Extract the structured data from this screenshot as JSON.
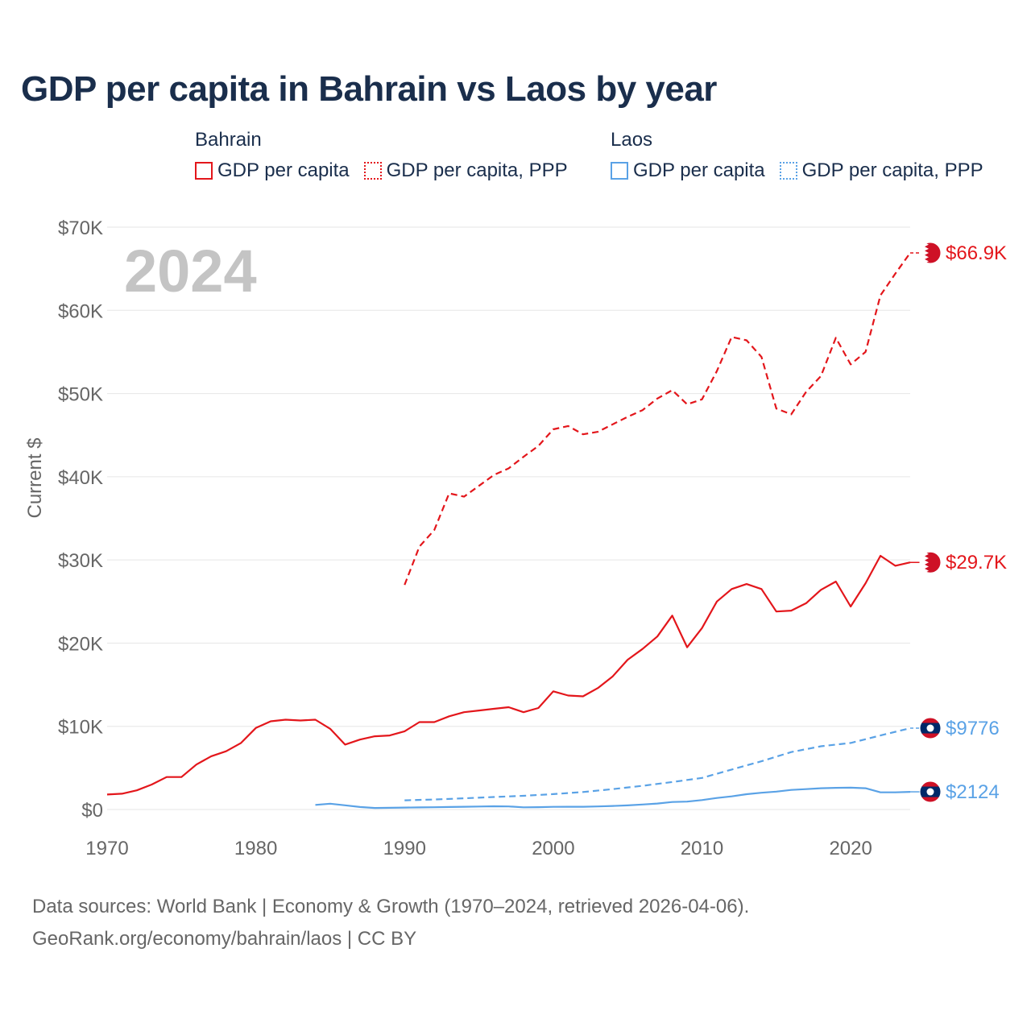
{
  "title": "GDP per capita in Bahrain vs Laos by year",
  "legend": {
    "groups": [
      {
        "country": "Bahrain",
        "items": [
          "GDP per capita",
          "GDP per capita, PPP"
        ]
      },
      {
        "country": "Laos",
        "items": [
          "GDP per capita",
          "GDP per capita, PPP"
        ]
      }
    ]
  },
  "colors": {
    "bahrain": "#e3161b",
    "laos": "#5aa2e6",
    "grid": "#e6e6e6",
    "axis_text": "#666666",
    "year_watermark": "#c4c4c4"
  },
  "chart_data": {
    "type": "line",
    "title": "GDP per capita in Bahrain vs Laos by year",
    "xlabel": "",
    "ylabel": "Current $",
    "xlim": [
      1970,
      2024
    ],
    "ylim": [
      0,
      70000
    ],
    "x_ticks": [
      "1970",
      "1980",
      "1990",
      "2000",
      "2010",
      "2020"
    ],
    "y_ticks": [
      "$0",
      "$10K",
      "$20K",
      "$30K",
      "$40K",
      "$50K",
      "$60K",
      "$70K"
    ],
    "year_label": "2024",
    "series": [
      {
        "name": "Bahrain GDP per capita",
        "country": "Bahrain",
        "style": "solid",
        "end_label": "$29.7K",
        "x": [
          1970,
          1971,
          1972,
          1973,
          1974,
          1975,
          1976,
          1977,
          1978,
          1979,
          1980,
          1981,
          1982,
          1983,
          1984,
          1985,
          1986,
          1987,
          1988,
          1989,
          1990,
          1991,
          1992,
          1993,
          1994,
          1995,
          1996,
          1997,
          1998,
          1999,
          2000,
          2001,
          2002,
          2003,
          2004,
          2005,
          2006,
          2007,
          2008,
          2009,
          2010,
          2011,
          2012,
          2013,
          2014,
          2015,
          2016,
          2017,
          2018,
          2019,
          2020,
          2021,
          2022,
          2023,
          2024
        ],
        "values": [
          1800,
          1900,
          2300,
          3000,
          3900,
          3900,
          5400,
          6400,
          7000,
          8000,
          9800,
          10600,
          10800,
          10700,
          10800,
          9700,
          7800,
          8400,
          8800,
          8900,
          9400,
          10500,
          10500,
          11200,
          11700,
          11900,
          12100,
          12300,
          11700,
          12200,
          14200,
          13700,
          13600,
          14600,
          16000,
          18000,
          19300,
          20800,
          23300,
          19500,
          21800,
          25000,
          26500,
          27100,
          26500,
          23800,
          23900,
          24800,
          26400,
          27400,
          24400,
          27200,
          30500,
          29300,
          29700
        ]
      },
      {
        "name": "Bahrain GDP per capita, PPP",
        "country": "Bahrain",
        "style": "dashed",
        "end_label": "$66.9K",
        "x": [
          1990,
          1991,
          1992,
          1993,
          1994,
          1995,
          1996,
          1997,
          1998,
          1999,
          2000,
          2001,
          2002,
          2003,
          2004,
          2005,
          2006,
          2007,
          2008,
          2009,
          2010,
          2011,
          2012,
          2013,
          2014,
          2015,
          2016,
          2017,
          2018,
          2019,
          2020,
          2021,
          2022,
          2023,
          2024
        ],
        "values": [
          27000,
          31600,
          33600,
          38000,
          37600,
          38900,
          40200,
          41000,
          42400,
          43700,
          45700,
          46100,
          45100,
          45400,
          46300,
          47200,
          48000,
          49400,
          50400,
          48700,
          49300,
          52700,
          56800,
          56400,
          54400,
          48200,
          47500,
          50200,
          52100,
          56700,
          53500,
          55000,
          61800,
          64400,
          66900
        ]
      },
      {
        "name": "Laos GDP per capita",
        "country": "Laos",
        "style": "solid",
        "end_label": "$2124",
        "x": [
          1984,
          1985,
          1986,
          1987,
          1988,
          1989,
          1990,
          1991,
          1992,
          1993,
          1994,
          1995,
          1996,
          1997,
          1998,
          1999,
          2000,
          2001,
          2002,
          2003,
          2004,
          2005,
          2006,
          2007,
          2008,
          2009,
          2010,
          2011,
          2012,
          2013,
          2014,
          2015,
          2016,
          2017,
          2018,
          2019,
          2020,
          2021,
          2022,
          2023,
          2024
        ],
        "values": [
          550,
          700,
          500,
          300,
          180,
          200,
          230,
          250,
          270,
          300,
          330,
          360,
          390,
          370,
          260,
          280,
          320,
          330,
          330,
          370,
          430,
          490,
          600,
          720,
          900,
          950,
          1130,
          1380,
          1580,
          1840,
          2010,
          2150,
          2350,
          2450,
          2560,
          2600,
          2620,
          2560,
          2060,
          2060,
          2124
        ]
      },
      {
        "name": "Laos GDP per capita, PPP",
        "country": "Laos",
        "style": "dashed",
        "end_label": "$9776",
        "x": [
          1990,
          1992,
          1994,
          1996,
          1998,
          2000,
          2002,
          2004,
          2006,
          2008,
          2010,
          2012,
          2014,
          2016,
          2018,
          2020,
          2022,
          2024
        ],
        "values": [
          1100,
          1200,
          1350,
          1500,
          1650,
          1850,
          2100,
          2450,
          2850,
          3300,
          3800,
          4800,
          5800,
          6900,
          7600,
          8000,
          8900,
          9776
        ]
      }
    ]
  },
  "footer": {
    "line1": "Data sources: World Bank | Economy & Growth (1970–2024, retrieved 2026-04-06).",
    "line2": "GeoRank.org/economy/bahrain/laos | CC BY"
  }
}
